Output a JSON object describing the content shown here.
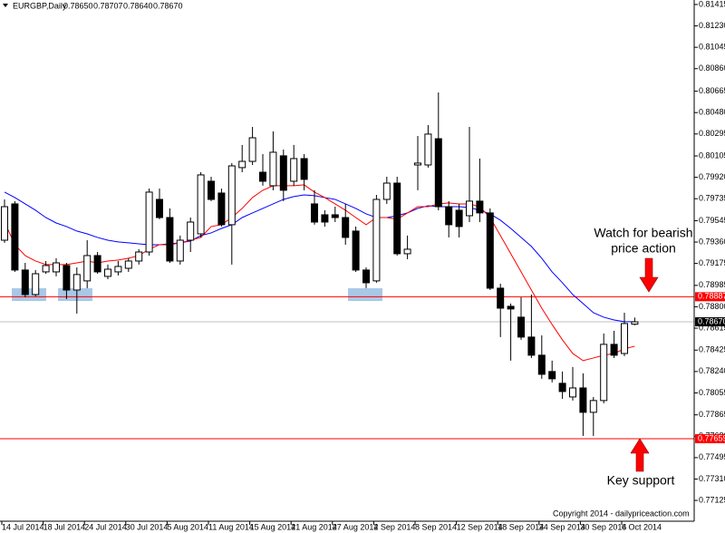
{
  "header": {
    "symbol": "EURGBP,Daily",
    "ohlc": [
      "0.78650",
      "0.78707",
      "0.78640",
      "0.78670"
    ]
  },
  "annotations": {
    "bearish": [
      "Watch for bearish",
      "price action"
    ],
    "support": "Key support",
    "copyright": "Copyright 2014 - dailypriceaction.com"
  },
  "chart_data": {
    "type": "candlestick",
    "categories": [
      "14 Jul 2014",
      null,
      null,
      null,
      "18 Jul 2014",
      null,
      null,
      null,
      "24 Jul 2014",
      null,
      null,
      null,
      "30 Jul 2014",
      null,
      null,
      null,
      "5 Aug 2014",
      null,
      null,
      null,
      "11 Aug 2014",
      null,
      null,
      null,
      "15 Aug 2014",
      null,
      null,
      null,
      "21 Aug 2014",
      null,
      null,
      null,
      "27 Aug 2014",
      null,
      null,
      null,
      "2 Sep 2014",
      null,
      null,
      null,
      "8 Sep 2014",
      null,
      null,
      null,
      "12 Sep 2014",
      null,
      null,
      null,
      "18 Sep 2014",
      null,
      null,
      null,
      "24 Sep 2014",
      null,
      null,
      null,
      "30 Sep 2014",
      null,
      null,
      null,
      "6 Oct 2014",
      null
    ],
    "ohlc": {
      "open": [
        0.79376,
        0.7969,
        0.79118,
        0.78906,
        0.79102,
        0.79102,
        0.79157,
        0.78945,
        0.79024,
        0.79243,
        0.79063,
        0.79102,
        0.79133,
        0.79196,
        0.79274,
        0.79729,
        0.79572,
        0.79196,
        0.79376,
        0.79431,
        0.79886,
        0.79784,
        0.7951,
        0.80004,
        0.80058,
        0.79964,
        0.79847,
        0.80106,
        0.79886,
        0.80082,
        0.7969,
        0.79596,
        0.79596,
        0.79572,
        0.79455,
        0.79118,
        0.79024,
        0.79729,
        0.7987,
        0.79259,
        0.80027,
        0.80027,
        0.80254,
        0.79666,
        0.79635,
        0.79588,
        0.79714,
        0.79612,
        0.78961,
        0.78804,
        0.7871,
        0.78538,
        0.78381,
        0.7824,
        0.78138,
        0.7802,
        0.78098,
        0.77887,
        0.77989,
        0.78475,
        0.78396,
        0.7865
      ],
      "high": [
        0.79729,
        0.79714,
        0.7918,
        0.79118,
        0.79196,
        0.7922,
        0.7918,
        0.79141,
        0.79376,
        0.79274,
        0.79165,
        0.79196,
        0.7922,
        0.79298,
        0.79823,
        0.79823,
        0.79651,
        0.79416,
        0.79572,
        0.79964,
        0.79925,
        0.79823,
        0.80043,
        0.802,
        0.80356,
        0.80121,
        0.80317,
        0.8016,
        0.802,
        0.80121,
        0.79808,
        0.79635,
        0.79666,
        0.7969,
        0.79494,
        0.79141,
        0.79768,
        0.79925,
        0.79925,
        0.79416,
        0.80278,
        0.80372,
        0.80654,
        0.79714,
        0.7969,
        0.80356,
        0.80082,
        0.79651,
        0.79,
        0.78828,
        0.78882,
        0.78906,
        0.78553,
        0.78334,
        0.7824,
        0.78279,
        0.78224,
        0.7802,
        0.78569,
        0.78592,
        0.78749,
        0.78707
      ],
      "low": [
        0.79353,
        0.79102,
        0.78882,
        0.7889,
        0.79086,
        0.79063,
        0.78867,
        0.78741,
        0.78961,
        0.79086,
        0.79039,
        0.79071,
        0.79102,
        0.79165,
        0.79243,
        0.79557,
        0.7918,
        0.79165,
        0.79274,
        0.794,
        0.79714,
        0.79494,
        0.79165,
        0.79964,
        0.80027,
        0.79847,
        0.79808,
        0.79714,
        0.79847,
        0.79808,
        0.7951,
        0.79494,
        0.79533,
        0.79337,
        0.79102,
        0.78961,
        0.79008,
        0.7969,
        0.79243,
        0.79212,
        0.79808,
        0.80004,
        0.79635,
        0.794,
        0.794,
        0.79533,
        0.79533,
        0.78945,
        0.78538,
        0.78334,
        0.78514,
        0.78357,
        0.78177,
        0.78146,
        0.78004,
        0.77989,
        0.77683,
        0.77683,
        0.77965,
        0.78357,
        0.78373,
        0.7864
      ],
      "close": [
        0.79666,
        0.79118,
        0.78906,
        0.79086,
        0.79157,
        0.7918,
        0.78945,
        0.79079,
        0.79243,
        0.79102,
        0.79125,
        0.79149,
        0.79196,
        0.79274,
        0.79792,
        0.79572,
        0.79196,
        0.79376,
        0.79533,
        0.79941,
        0.79729,
        0.7951,
        0.80019,
        0.80058,
        0.80262,
        0.79886,
        0.80137,
        0.79808,
        0.80082,
        0.79902,
        0.79533,
        0.79533,
        0.79572,
        0.794,
        0.79118,
        0.79008,
        0.79729,
        0.7987,
        0.79259,
        0.79298,
        0.80043,
        0.80294,
        0.79666,
        0.7951,
        0.79494,
        0.79714,
        0.79612,
        0.78961,
        0.78788,
        0.78781,
        0.78538,
        0.78381,
        0.78216,
        0.78177,
        0.78067,
        0.78098,
        0.77887,
        0.77989,
        0.78475,
        0.78381,
        0.78655,
        0.7867
      ]
    },
    "lines": [
      {
        "color": "#0000ff",
        "values": [
          0.79792,
          0.79745,
          0.7969,
          0.79635,
          0.79572,
          0.79525,
          0.79494,
          0.79455,
          0.79431,
          0.794,
          0.79376,
          0.79361,
          0.79353,
          0.79345,
          0.79337,
          0.79337,
          0.79345,
          0.79353,
          0.79369,
          0.79416,
          0.79439,
          0.79478,
          0.7951,
          0.79572,
          0.79612,
          0.79651,
          0.7969,
          0.79729,
          0.79753,
          0.79768,
          0.79761,
          0.79745,
          0.79729,
          0.7969,
          0.79651,
          0.79604,
          0.79572,
          0.79572,
          0.79588,
          0.79612,
          0.79651,
          0.79674,
          0.79666,
          0.79666,
          0.79666,
          0.79659,
          0.79635,
          0.79604,
          0.79549,
          0.79478,
          0.794,
          0.79322,
          0.7922,
          0.79102,
          0.79008,
          0.78906,
          0.78828,
          0.78749,
          0.7871,
          0.78686,
          0.78671,
          0.78671
        ]
      },
      {
        "color": "#ff0000",
        "values": [
          0.79533,
          0.79337,
          0.79243,
          0.79196,
          0.79165,
          0.79165,
          0.79165,
          0.7918,
          0.79196,
          0.7918,
          0.79196,
          0.79204,
          0.7922,
          0.79243,
          0.79298,
          0.79337,
          0.79337,
          0.79353,
          0.79376,
          0.794,
          0.79494,
          0.7951,
          0.79572,
          0.79651,
          0.79745,
          0.79808,
          0.79847,
          0.79847,
          0.79847,
          0.79855,
          0.79792,
          0.79745,
          0.7969,
          0.79635,
          0.79572,
          0.7951,
          0.79572,
          0.79572,
          0.79557,
          0.79612,
          0.79666,
          0.79666,
          0.7969,
          0.79698,
          0.7969,
          0.7969,
          0.79666,
          0.79572,
          0.79416,
          0.79259,
          0.79102,
          0.78945,
          0.78788,
          0.78647,
          0.78514,
          0.78396,
          0.78334,
          0.78357,
          0.78381,
          0.78396,
          0.78436,
          0.78459
        ]
      }
    ],
    "levels": [
      {
        "value": 0.78887,
        "color": "#ff0000"
      },
      {
        "value": 0.7867,
        "label": "0.78670",
        "color": "#c0c0c0"
      },
      {
        "value": 0.77659,
        "color": "#ff0000"
      }
    ],
    "up_color": "#ffffff",
    "down_color": "#000000",
    "ylim": [
      0.76945,
      0.81454
    ],
    "yticks": [
      0.77125,
      {
        "value": 0.7731,
        "label": "0.77310"
      },
      0.77495,
      {
        "value": 0.7768,
        "label": "0.77680"
      },
      0.77865,
      0.78055,
      {
        "value": 0.7824,
        "label": "0.78240"
      },
      0.78425,
      0.78615,
      {
        "value": 0.788,
        "label": "0.78800"
      },
      0.78985,
      0.79175,
      {
        "value": 0.7936,
        "label": "0.79360"
      },
      0.79545,
      0.79735,
      {
        "value": 0.7992,
        "label": "0.79920"
      },
      0.80105,
      0.80295,
      {
        "value": 0.8048,
        "label": "0.80480"
      },
      0.80665,
      {
        "value": 0.8086,
        "label": "0.80860"
      },
      0.81045,
      {
        "value": 0.8123,
        "label": "0.81230"
      },
      0.81415
    ]
  }
}
